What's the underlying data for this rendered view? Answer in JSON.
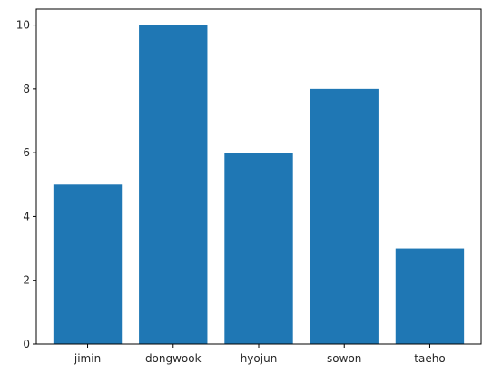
{
  "chart_data": {
    "type": "bar",
    "title": "",
    "xlabel": "",
    "ylabel": "",
    "categories": [
      "jimin",
      "dongwook",
      "hyojun",
      "sowon",
      "taeho"
    ],
    "values": [
      5,
      10,
      6,
      8,
      3
    ],
    "ylim": [
      0,
      10.5
    ],
    "yticks": [
      0,
      2,
      4,
      6,
      8,
      10
    ],
    "grid": false,
    "legend": "none",
    "bar_color": "#1f77b4"
  }
}
